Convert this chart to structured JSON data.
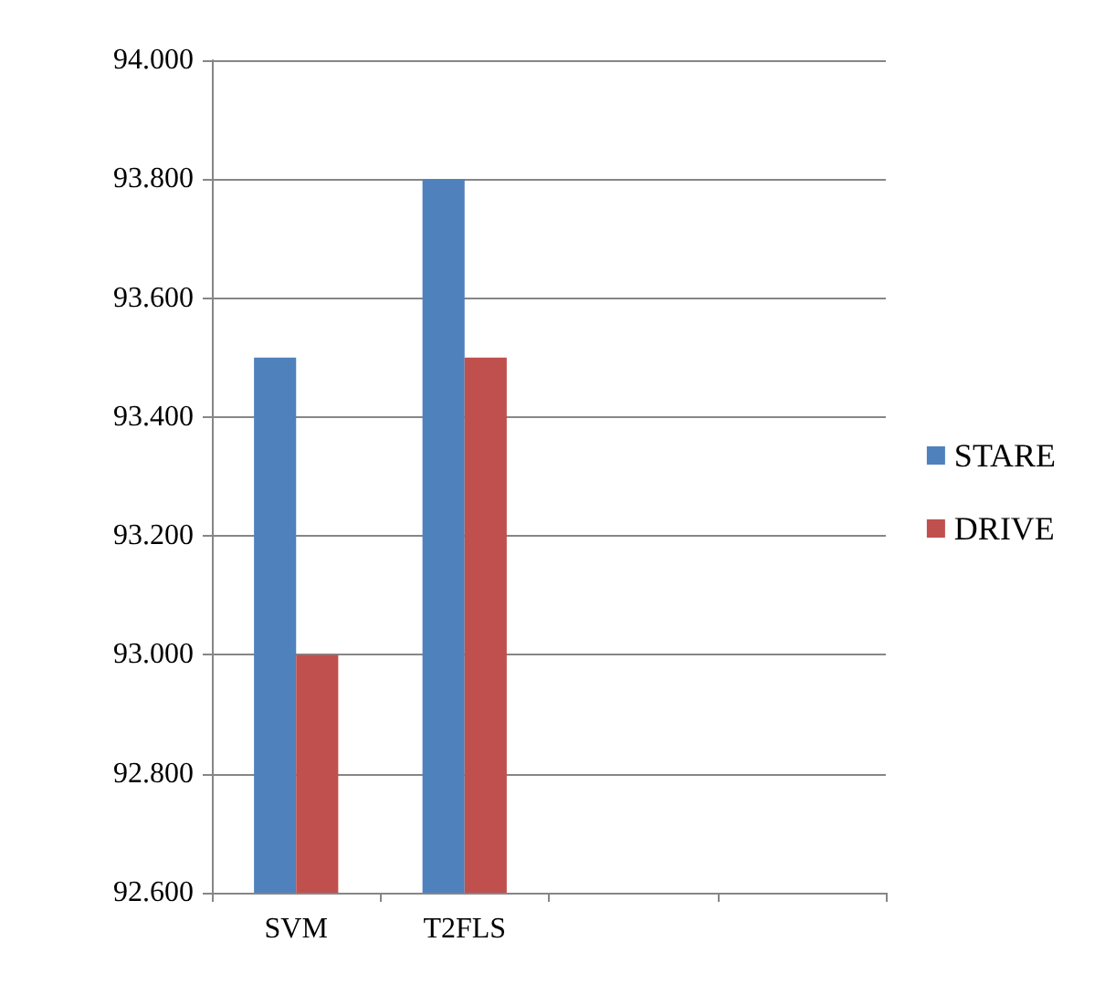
{
  "chart_data": {
    "type": "bar",
    "categories": [
      "SVM",
      "T2FLS",
      null,
      null
    ],
    "series": [
      {
        "name": "STARE",
        "color": "#4f81bd",
        "values": [
          93.5,
          93.8,
          null,
          null
        ]
      },
      {
        "name": "DRIVE",
        "color": "#c0504d",
        "values": [
          93.0,
          93.5,
          null,
          null
        ]
      }
    ],
    "ylim": [
      92.6,
      94.0
    ],
    "yticks": [
      {
        "value": 92.6,
        "label": "92.600"
      },
      {
        "value": 92.8,
        "label": "92.800"
      },
      {
        "value": 93.0,
        "label": "93.000"
      },
      {
        "value": 93.2,
        "label": "93.200"
      },
      {
        "value": 93.4,
        "label": "93.400"
      },
      {
        "value": 93.6,
        "label": "93.600"
      },
      {
        "value": 93.8,
        "label": "93.800"
      },
      {
        "value": 94.0,
        "label": "94.000"
      }
    ],
    "grid": "y",
    "legend": "right"
  }
}
